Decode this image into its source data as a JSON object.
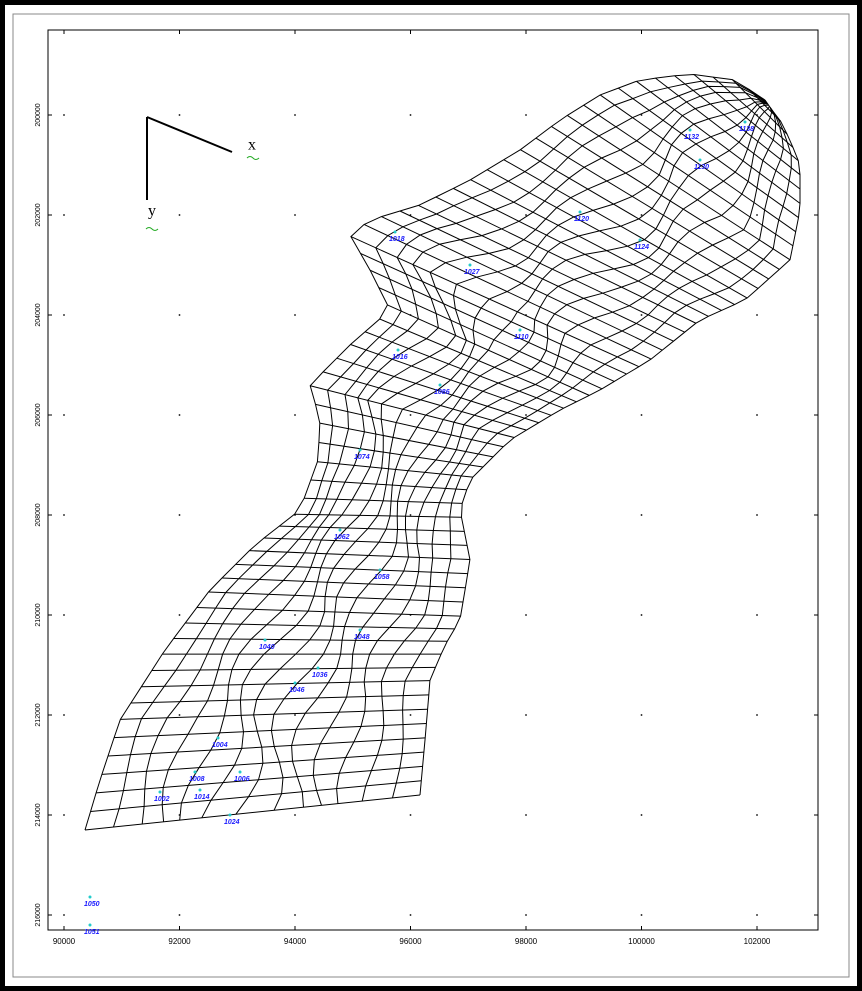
{
  "chart_data": {
    "type": "scatter",
    "compass": {
      "x_label": "x",
      "y_label": "y"
    },
    "xlim": [
      89723,
      103056
    ],
    "ylim": [
      198300,
      216300
    ],
    "y_inverted": true,
    "xticks": [
      90000,
      92000,
      94000,
      96000,
      98000,
      100000,
      102000
    ],
    "yticks": [
      200000,
      202000,
      204000,
      206000,
      208000,
      210000,
      212000,
      214000,
      216000
    ],
    "grid": "dots",
    "series": [
      {
        "color": "#1a1aff",
        "labels": [
          "1050",
          "1051",
          "1004",
          "1008",
          "1006",
          "1002",
          "1014",
          "1024",
          "1040",
          "1046",
          "1036",
          "1018",
          "1027",
          "1016",
          "1120",
          "1132",
          "1138",
          "1130",
          "1124",
          "1110",
          "1086",
          "1074",
          "1062",
          "1058",
          "1048"
        ],
        "x": [
          90450,
          90450,
          92667,
          92268,
          93048,
          91662,
          92355,
          92874,
          93481,
          94000,
          94398,
          95732,
          97030,
          95784,
          98935,
          100840,
          101792,
          101013,
          99974,
          97896,
          96511,
          95126,
          94779,
          95472,
          95126
        ],
        "values": [
          215640,
          216200,
          212460,
          213140,
          213140,
          213540,
          213500,
          214000,
          210500,
          211360,
          211060,
          202340,
          203000,
          204700,
          201940,
          200300,
          200140,
          200900,
          202500,
          204300,
          205400,
          206700,
          208300,
          209100,
          210300
        ]
      }
    ]
  }
}
